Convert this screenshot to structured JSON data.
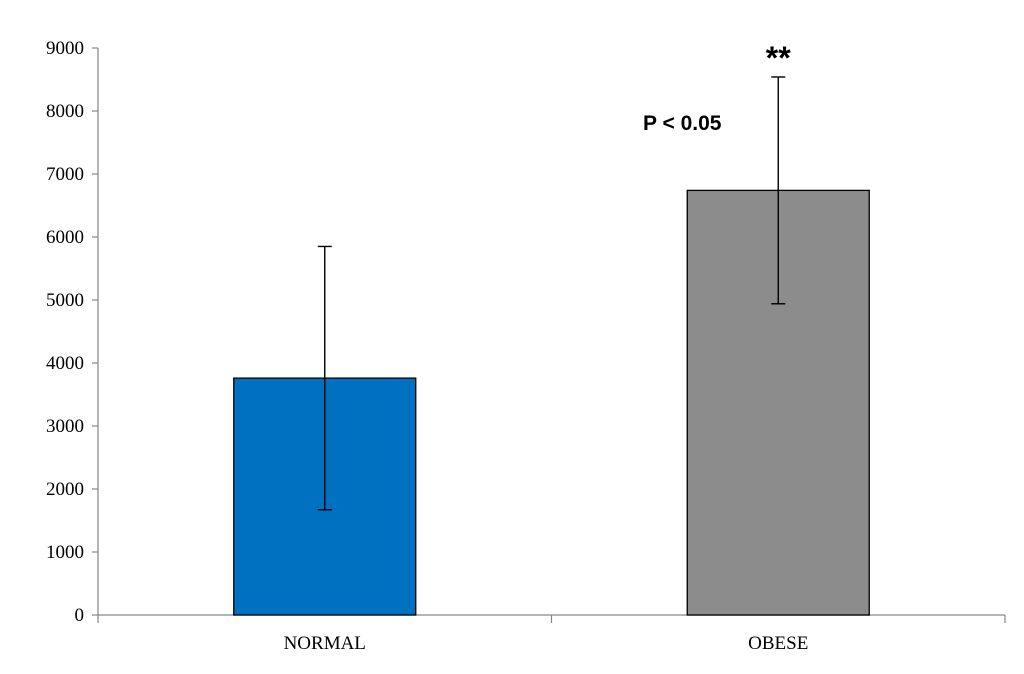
{
  "chart_data": {
    "type": "bar",
    "categories": [
      "NORMAL",
      "OBESE"
    ],
    "values": [
      3760,
      6740
    ],
    "error_bars": [
      {
        "low": 1670,
        "high": 5850
      },
      {
        "low": 4940,
        "high": 8540
      }
    ],
    "bar_colors": [
      "#0070C0",
      "#8C8C8C"
    ],
    "ylim": [
      0,
      9000
    ],
    "yticks": [
      0,
      1000,
      2000,
      3000,
      4000,
      5000,
      6000,
      7000,
      8000,
      9000
    ],
    "grid": false,
    "annotations": [
      {
        "text": "P < 0.05",
        "category": "OBESE",
        "anchor": "above-bar-left"
      },
      {
        "text": "**",
        "category": "OBESE",
        "anchor": "above-error-bar"
      }
    ]
  }
}
